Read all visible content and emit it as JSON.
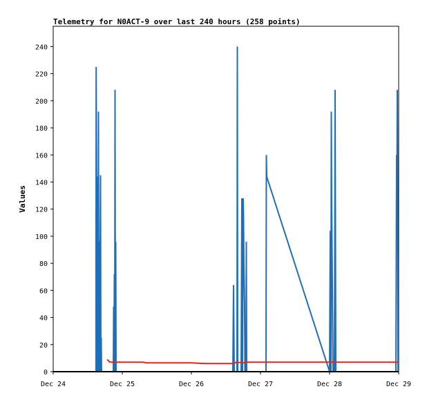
{
  "chart_data": {
    "type": "line",
    "title": "Telemetry for N0ACT-9 over last 240 hours (258 points)",
    "xlabel": "",
    "ylabel": "Values",
    "xlim": [
      "Dec 24",
      "Dec 29"
    ],
    "ylim": [
      0,
      255
    ],
    "x_ticks": [
      "Dec 24",
      "Dec 25",
      "Dec 26",
      "Dec 27",
      "Dec 28",
      "Dec 29"
    ],
    "y_ticks": [
      0,
      20,
      40,
      60,
      80,
      100,
      120,
      140,
      160,
      180,
      200,
      220,
      240
    ],
    "grid": false,
    "colors": {
      "series_blue": "#1f6fb8",
      "series_red": "#e8231c",
      "axis": "#000000"
    },
    "series": [
      {
        "points": [
          [
            0.62,
            0
          ],
          [
            0.62,
            112
          ],
          [
            0.622,
            225
          ],
          [
            0.625,
            176
          ],
          [
            0.628,
            144
          ],
          [
            0.632,
            108
          ],
          [
            0.636,
            0
          ],
          [
            0.64,
            144
          ],
          [
            0.645,
            97
          ],
          [
            0.65,
            0
          ],
          [
            0.655,
            192
          ],
          [
            0.66,
            0
          ],
          [
            0.666,
            96
          ],
          [
            0.67,
            0
          ],
          [
            0.678,
            73
          ],
          [
            0.685,
            145
          ],
          [
            0.69,
            0
          ],
          [
            0.695,
            25
          ],
          [
            0.7,
            0
          ],
          [
            0.87,
            0
          ],
          [
            0.875,
            48
          ],
          [
            0.88,
            0
          ],
          [
            0.885,
            72
          ],
          [
            0.89,
            0
          ],
          [
            0.895,
            208
          ],
          [
            0.9,
            0
          ],
          [
            0.905,
            96
          ],
          [
            0.91,
            0
          ],
          [
            2.6,
            0
          ],
          [
            2.61,
            64
          ],
          [
            2.62,
            0
          ],
          [
            2.66,
            0
          ],
          [
            2.665,
            240
          ],
          [
            2.67,
            0
          ],
          [
            2.72,
            0
          ],
          [
            2.73,
            128
          ],
          [
            2.74,
            0
          ],
          [
            2.75,
            128
          ],
          [
            2.755,
            112
          ],
          [
            2.76,
            80
          ],
          [
            2.77,
            48
          ],
          [
            2.775,
            0
          ],
          [
            2.79,
            0
          ],
          [
            2.795,
            96
          ],
          [
            2.8,
            0
          ],
          [
            3.08,
            0
          ],
          [
            3.085,
            160
          ],
          [
            3.09,
            144
          ],
          [
            4.0,
            0
          ],
          [
            4.01,
            104
          ],
          [
            4.02,
            0
          ],
          [
            4.025,
            192
          ],
          [
            4.03,
            128
          ],
          [
            4.04,
            64
          ],
          [
            4.05,
            0
          ],
          [
            4.07,
            0
          ],
          [
            4.075,
            80
          ],
          [
            4.08,
            208
          ],
          [
            4.09,
            0
          ],
          [
            4.96,
            0
          ],
          [
            4.97,
            160
          ],
          [
            4.975,
            136
          ],
          [
            4.98,
            208
          ],
          [
            4.985,
            137
          ],
          [
            4.99,
            0
          ]
        ]
      },
      {
        "points": [
          [
            0.78,
            9
          ],
          [
            0.8,
            8
          ],
          [
            0.82,
            7
          ],
          [
            0.9,
            7
          ],
          [
            1.0,
            7
          ],
          [
            1.3,
            7
          ],
          [
            1.35,
            6.5
          ],
          [
            1.7,
            6.5
          ],
          [
            2.0,
            6.5
          ],
          [
            2.2,
            6
          ],
          [
            2.5,
            6
          ],
          [
            2.62,
            6
          ],
          [
            2.65,
            7
          ],
          [
            2.75,
            6.5
          ],
          [
            2.8,
            7
          ],
          [
            3.0,
            7
          ],
          [
            3.5,
            7
          ],
          [
            4.0,
            7
          ],
          [
            4.5,
            7
          ],
          [
            5.0,
            7
          ]
        ]
      }
    ]
  }
}
